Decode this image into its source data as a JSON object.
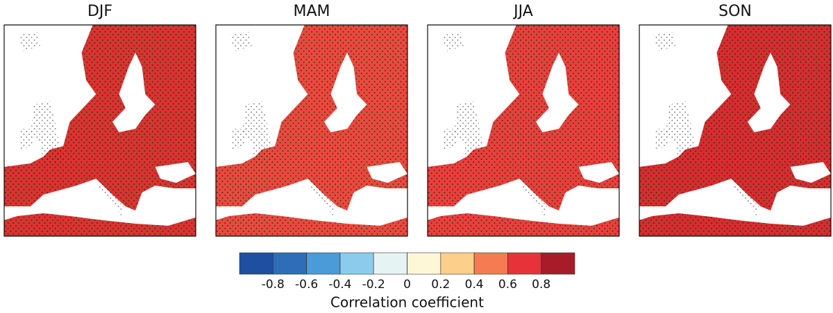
{
  "panels": [
    {
      "title": "DJF",
      "color": "#d9342f"
    },
    {
      "title": "MAM",
      "color": "#e84a3c"
    },
    {
      "title": "JJA",
      "color": "#e8403a"
    },
    {
      "title": "SON",
      "color": "#d52e2e"
    }
  ],
  "colorbar": {
    "lim": [
      -1,
      1
    ],
    "ticks": [
      -0.8,
      -0.6,
      -0.4,
      -0.2,
      0,
      0.2,
      0.4,
      0.6,
      0.8
    ],
    "colors": [
      "#1f4fa0",
      "#2f6db8",
      "#4a9bd8",
      "#8ccbec",
      "#e6f3f3",
      "#fdf7d8",
      "#fcd08a",
      "#f57c52",
      "#e8323a",
      "#a81c2a"
    ],
    "label": "Correlation coefficient"
  }
}
